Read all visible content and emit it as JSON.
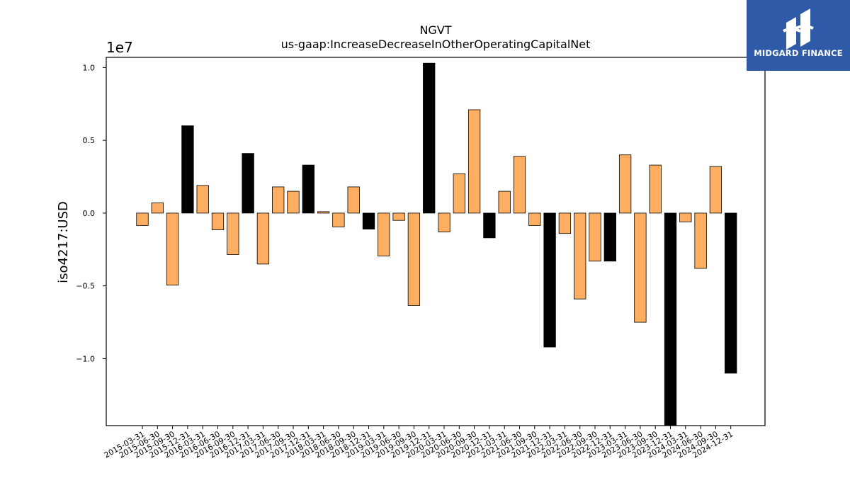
{
  "chart_data": {
    "type": "bar",
    "title": "NGVT",
    "subtitle": "us-gaap:IncreaseDecreaseInOtherOperatingCapitalNet",
    "ylabel": "iso4217:USD",
    "xlabel": "",
    "y_offset_label": "1e7",
    "ylim": [
      -14600000.0,
      10700000.0
    ],
    "yticks": [
      -10000000.0,
      -5000000.0,
      0,
      5000000.0,
      10000000.0
    ],
    "ytick_labels": [
      "−1.0",
      "−0.5",
      "0.0",
      "0.5",
      "1.0"
    ],
    "grid": false,
    "colors": {
      "normal": "#fdae61",
      "highlight": "#000000",
      "edge": "#000000"
    },
    "categories": [
      "2015-03-31",
      "2015-06-30",
      "2015-09-30",
      "2015-12-31",
      "2016-03-31",
      "2016-06-30",
      "2016-09-30",
      "2016-12-31",
      "2017-03-31",
      "2017-06-30",
      "2017-09-30",
      "2017-12-31",
      "2018-03-31",
      "2018-06-30",
      "2018-09-30",
      "2018-12-31",
      "2019-03-31",
      "2019-06-30",
      "2019-09-30",
      "2019-12-31",
      "2020-03-31",
      "2020-06-30",
      "2020-09-30",
      "2020-12-31",
      "2021-03-31",
      "2021-06-30",
      "2021-09-30",
      "2021-12-31",
      "2022-03-31",
      "2022-06-30",
      "2022-09-30",
      "2022-12-31",
      "2023-03-31",
      "2023-06-30",
      "2023-09-30",
      "2023-12-31",
      "2024-03-31",
      "2024-06-30",
      "2024-09-30",
      "2024-12-31"
    ],
    "values": [
      -850000,
      700000,
      -4950000,
      6000000,
      1900000,
      -1150000,
      -2850000,
      4100000,
      -3500000,
      1800000,
      1500000,
      3300000,
      100000,
      -950000,
      1800000,
      -1100000,
      -2950000,
      -500000,
      -6350000,
      10300000,
      -1300000,
      2700000,
      7100000,
      -1700000,
      1500000,
      3900000,
      -850000,
      -9200000,
      -1400000,
      -5900000,
      -3300000,
      -3300000,
      4000000,
      -7500000,
      3300000,
      -14600000,
      -600000,
      -3800000,
      3200000,
      -11000000
    ],
    "highlight": [
      false,
      false,
      false,
      true,
      false,
      false,
      false,
      true,
      false,
      false,
      false,
      true,
      false,
      false,
      false,
      true,
      false,
      false,
      false,
      true,
      false,
      false,
      false,
      true,
      false,
      false,
      false,
      true,
      false,
      false,
      false,
      true,
      false,
      false,
      false,
      true,
      false,
      false,
      false,
      true
    ]
  },
  "logo": {
    "name": "midgard-logo-icon",
    "text": "MIDGARD FINANCE"
  }
}
